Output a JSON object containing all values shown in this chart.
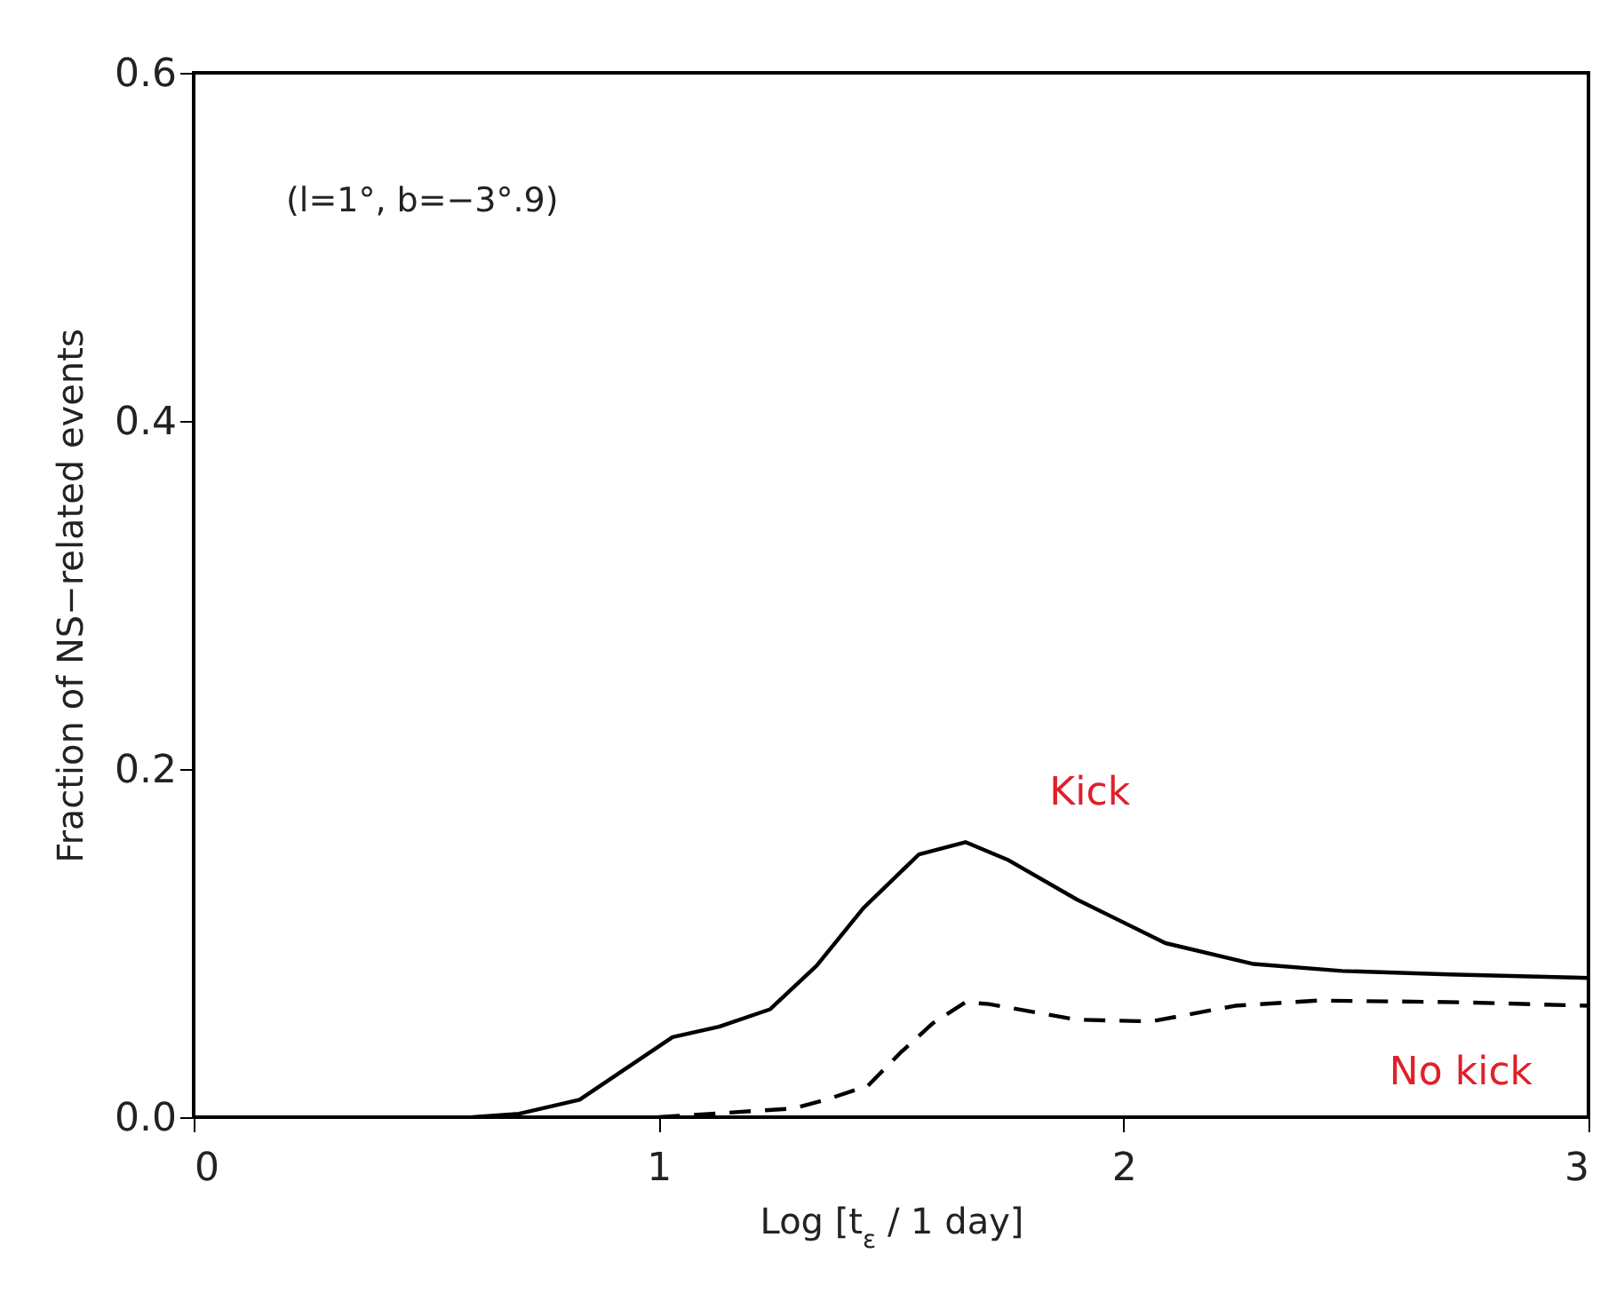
{
  "chart_data": {
    "type": "line",
    "xlabel": "Log [t$_{ε}$ / 1 day]",
    "ylabel": "Fraction of NS−related events",
    "annotations": [
      "(l=1°, b=−3°.9)"
    ],
    "xlim": [
      0,
      3
    ],
    "xticks": [
      0,
      1,
      2,
      3
    ],
    "ylim": [
      0,
      0.6
    ],
    "yticks": [
      {
        "value": 0,
        "label": "0.0"
      },
      0.2,
      0.4,
      0.6
    ],
    "series": [
      {
        "name": "Kick",
        "color": "#000000",
        "line_style": "solid",
        "x": [
          0.6,
          0.7,
          0.83,
          1.03,
          1.13,
          1.24,
          1.34,
          1.44,
          1.56,
          1.66,
          1.75,
          1.9,
          2.09,
          2.28,
          2.47,
          2.7,
          3.0
        ],
        "values": [
          0,
          0.002,
          0.01,
          0.046,
          0.052,
          0.062,
          0.087,
          0.12,
          0.151,
          0.158,
          0.148,
          0.125,
          0.1,
          0.088,
          0.084,
          0.082,
          0.08
        ]
      },
      {
        "name": "No kick",
        "color": "#000000",
        "line_style": "dashed",
        "x": [
          1.0,
          1.29,
          1.36,
          1.45,
          1.52,
          1.59,
          1.66,
          1.71,
          1.9,
          2.06,
          2.24,
          2.42,
          2.73,
          3.0
        ],
        "values": [
          0,
          0.005,
          0.01,
          0.018,
          0.037,
          0.054,
          0.066,
          0.065,
          0.056,
          0.055,
          0.064,
          0.067,
          0.066,
          0.064
        ]
      }
    ]
  }
}
